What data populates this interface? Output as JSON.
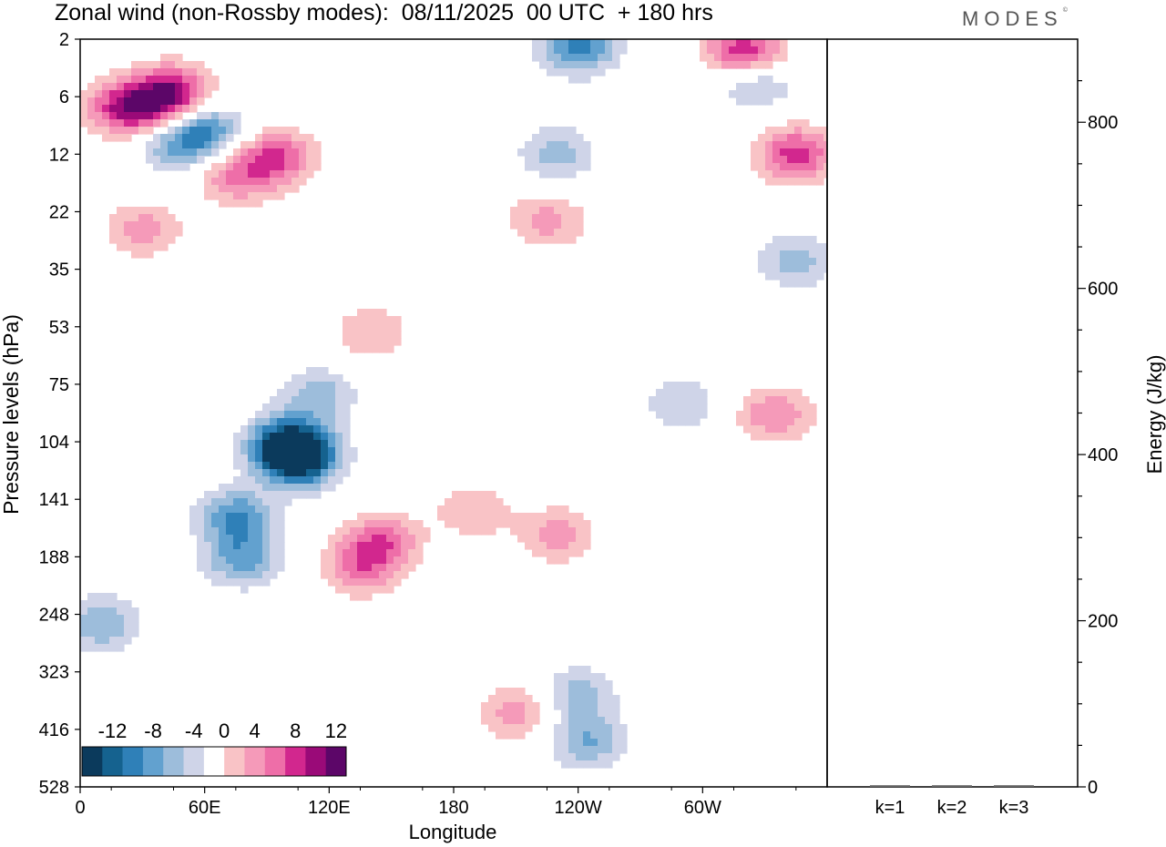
{
  "figure": {
    "title": "Zonal wind (non-Rossby modes):  08/11/2025  00 UTC  + 180 hrs",
    "brand": "MODES",
    "brand_mark": "©"
  },
  "chart_data": [
    {
      "type": "heatmap",
      "title": "Zonal wind (non-Rossby modes):  08/11/2025  00 UTC  + 180 hrs",
      "xlabel": "Longitude",
      "ylabel": "Pressure levels (hPa)",
      "x_ticks": [
        "0",
        "60E",
        "120E",
        "180",
        "120W",
        "60W"
      ],
      "y_ticks": [
        "2",
        "6",
        "12",
        "22",
        "35",
        "53",
        "75",
        "104",
        "141",
        "188",
        "248",
        "323",
        "416",
        "528"
      ],
      "colorbar": {
        "labels": [
          "-12",
          "-8",
          "-4",
          "0",
          "4",
          "8",
          "12"
        ],
        "levels": [
          -14,
          -12,
          -10,
          -8,
          -6,
          -4,
          -2,
          2,
          4,
          6,
          8,
          10,
          12,
          14
        ],
        "colors": [
          "#0b3a5c",
          "#15628f",
          "#2f80b8",
          "#62a1cf",
          "#9dbddb",
          "#cfd4e8",
          "#ffffff",
          "#f9c3c6",
          "#f59ab9",
          "#ee6ea8",
          "#d2278e",
          "#9a0a78",
          "#5c0668"
        ]
      },
      "anomalies": [
        {
          "lon": 45,
          "lev": 5.6,
          "v": 9
        },
        {
          "lon": 20,
          "lev": 7.2,
          "v": 8
        },
        {
          "lon": 35,
          "lev": 7.0,
          "v": 6
        },
        {
          "lon": 60,
          "lev": 9.6,
          "v": -8
        },
        {
          "lon": 45,
          "lev": 11.0,
          "v": -5
        },
        {
          "lon": 95,
          "lev": 12.5,
          "v": 8
        },
        {
          "lon": 75,
          "lev": 16.0,
          "v": 6
        },
        {
          "lon": 30,
          "lev": 26.0,
          "v": 5
        },
        {
          "lon": 105,
          "lev": 115.0,
          "v": -14
        },
        {
          "lon": 100,
          "lev": 104.0,
          "v": -10
        },
        {
          "lon": 75,
          "lev": 155.0,
          "v": -8
        },
        {
          "lon": 78,
          "lev": 190.0,
          "v": -7
        },
        {
          "lon": 115,
          "lev": 80.0,
          "v": -5
        },
        {
          "lon": 10,
          "lev": 260.0,
          "v": -6
        },
        {
          "lon": 145,
          "lev": 175.0,
          "v": 7
        },
        {
          "lon": 135,
          "lev": 200.0,
          "v": 6
        },
        {
          "lon": 190,
          "lev": 150.0,
          "v": 4
        },
        {
          "lon": 230,
          "lev": 170.0,
          "v": 5
        },
        {
          "lon": 210,
          "lev": 390.0,
          "v": 5
        },
        {
          "lon": 140,
          "lev": 55.0,
          "v": 4
        },
        {
          "lon": 240,
          "lev": 2.5,
          "v": -9
        },
        {
          "lon": 320,
          "lev": 2.8,
          "v": 10
        },
        {
          "lon": 325,
          "lev": 5.0,
          "v": -5
        },
        {
          "lon": 345,
          "lev": 12.0,
          "v": 9
        },
        {
          "lon": 230,
          "lev": 12.0,
          "v": -5
        },
        {
          "lon": 245,
          "lev": 440.0,
          "v": -6
        },
        {
          "lon": 345,
          "lev": 33.0,
          "v": -5
        },
        {
          "lon": 335,
          "lev": 90.0,
          "v": 6
        },
        {
          "lon": 290,
          "lev": 85.0,
          "v": -4
        },
        {
          "lon": 225,
          "lev": 24.0,
          "v": 5
        },
        {
          "lon": 240,
          "lev": 360.0,
          "v": -5
        }
      ]
    },
    {
      "type": "bar",
      "ylabel": "Energy (J/kg)",
      "categories": [
        "k=1",
        "k=2",
        "k=3"
      ],
      "values": [
        2,
        2,
        2
      ],
      "ylim": [
        0,
        900
      ],
      "y_ticks": [
        0,
        200,
        400,
        600,
        800
      ]
    }
  ]
}
